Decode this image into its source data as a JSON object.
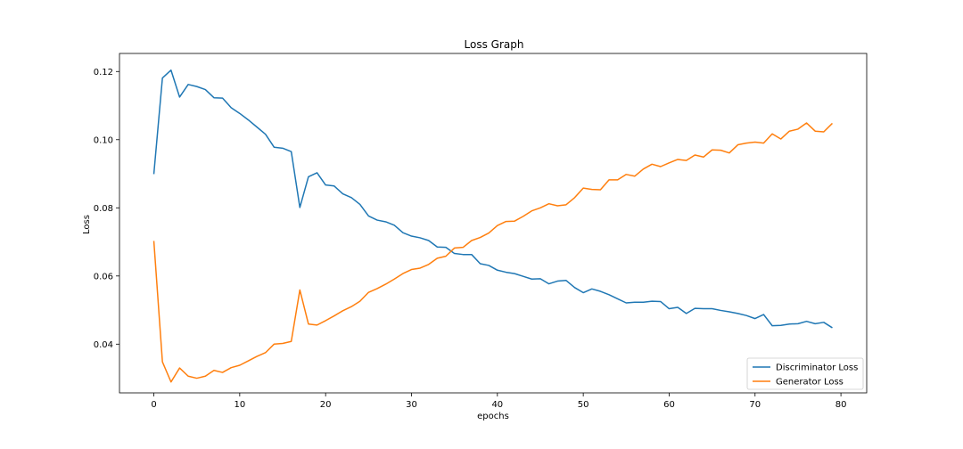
{
  "chart_data": {
    "type": "line",
    "title": "Loss Graph",
    "xlabel": "epochs",
    "ylabel": "Loss",
    "xlim": [
      -4,
      83
    ],
    "ylim": [
      0.0257,
      0.1253
    ],
    "xticks": [
      0,
      10,
      20,
      30,
      40,
      50,
      60,
      70,
      80
    ],
    "yticks": [
      0.04,
      0.06,
      0.08,
      0.1,
      0.12
    ],
    "ytick_labels": [
      "0.04",
      "0.06",
      "0.08",
      "0.10",
      "0.12"
    ],
    "grid": false,
    "legend_position": "lower right",
    "series": [
      {
        "name": "Discriminator Loss",
        "color": "#1f77b4",
        "x": [
          0,
          1,
          2,
          3,
          4,
          5,
          6,
          7,
          8,
          9,
          10,
          11,
          12,
          13,
          14,
          15,
          16,
          17,
          18,
          19,
          20,
          21,
          22,
          23,
          24,
          25,
          26,
          27,
          28,
          29,
          30,
          31,
          32,
          33,
          34,
          35,
          36,
          37,
          38,
          39,
          40,
          41,
          42,
          43,
          44,
          45,
          46,
          47,
          48,
          49,
          50,
          51,
          52,
          53,
          54,
          55,
          56,
          57,
          58,
          59,
          60,
          61,
          62,
          63,
          64,
          65,
          66,
          67,
          68,
          69,
          70,
          71,
          72,
          73,
          74,
          75,
          76,
          77,
          78,
          79
        ],
        "values": [
          0.0899,
          0.1181,
          0.1204,
          0.1125,
          0.1162,
          0.1156,
          0.1147,
          0.1123,
          0.1122,
          0.1094,
          0.1077,
          0.1058,
          0.1037,
          0.1016,
          0.0978,
          0.0975,
          0.0965,
          0.0801,
          0.0891,
          0.0903,
          0.0867,
          0.0864,
          0.0841,
          0.083,
          0.081,
          0.0776,
          0.0764,
          0.0759,
          0.0749,
          0.0727,
          0.0717,
          0.0712,
          0.0704,
          0.0685,
          0.0684,
          0.0666,
          0.0663,
          0.0663,
          0.0636,
          0.0631,
          0.0617,
          0.0611,
          0.0607,
          0.0599,
          0.0591,
          0.0592,
          0.0577,
          0.0585,
          0.0587,
          0.0566,
          0.0551,
          0.0562,
          0.0555,
          0.0545,
          0.0533,
          0.0521,
          0.0523,
          0.0523,
          0.0526,
          0.0525,
          0.0504,
          0.0508,
          0.049,
          0.0505,
          0.0504,
          0.0504,
          0.0499,
          0.0495,
          0.049,
          0.0484,
          0.0475,
          0.0487,
          0.0454,
          0.0455,
          0.0459,
          0.046,
          0.0467,
          0.046,
          0.0464,
          0.0448
        ]
      },
      {
        "name": "Generator Loss",
        "color": "#ff7f0e",
        "x": [
          0,
          1,
          2,
          3,
          4,
          5,
          6,
          7,
          8,
          9,
          10,
          11,
          12,
          13,
          14,
          15,
          16,
          17,
          18,
          19,
          20,
          21,
          22,
          23,
          24,
          25,
          26,
          27,
          28,
          29,
          30,
          31,
          32,
          33,
          34,
          35,
          36,
          37,
          38,
          39,
          40,
          41,
          42,
          43,
          44,
          45,
          46,
          47,
          48,
          49,
          50,
          51,
          52,
          53,
          54,
          55,
          56,
          57,
          58,
          59,
          60,
          61,
          62,
          63,
          64,
          65,
          66,
          67,
          68,
          69,
          70,
          71,
          72,
          73,
          74,
          75,
          76,
          77,
          78,
          79
        ],
        "values": [
          0.0703,
          0.0348,
          0.0289,
          0.033,
          0.0306,
          0.03,
          0.0306,
          0.0323,
          0.0317,
          0.0331,
          0.0338,
          0.0351,
          0.0364,
          0.0375,
          0.04,
          0.0402,
          0.0408,
          0.0559,
          0.0459,
          0.0456,
          0.0469,
          0.0483,
          0.0498,
          0.051,
          0.0526,
          0.0552,
          0.0563,
          0.0576,
          0.0591,
          0.0607,
          0.0619,
          0.0623,
          0.0634,
          0.0652,
          0.0658,
          0.0682,
          0.0684,
          0.0704,
          0.0713,
          0.0726,
          0.0748,
          0.076,
          0.0761,
          0.0775,
          0.0791,
          0.08,
          0.0812,
          0.0806,
          0.0809,
          0.083,
          0.0858,
          0.0854,
          0.0853,
          0.0882,
          0.0882,
          0.0898,
          0.0893,
          0.0914,
          0.0928,
          0.0921,
          0.0932,
          0.0942,
          0.0939,
          0.0955,
          0.0949,
          0.097,
          0.0969,
          0.0961,
          0.0985,
          0.099,
          0.0993,
          0.099,
          0.1017,
          0.1002,
          0.1025,
          0.1031,
          0.1049,
          0.1025,
          0.1023,
          0.1048
        ]
      }
    ]
  }
}
